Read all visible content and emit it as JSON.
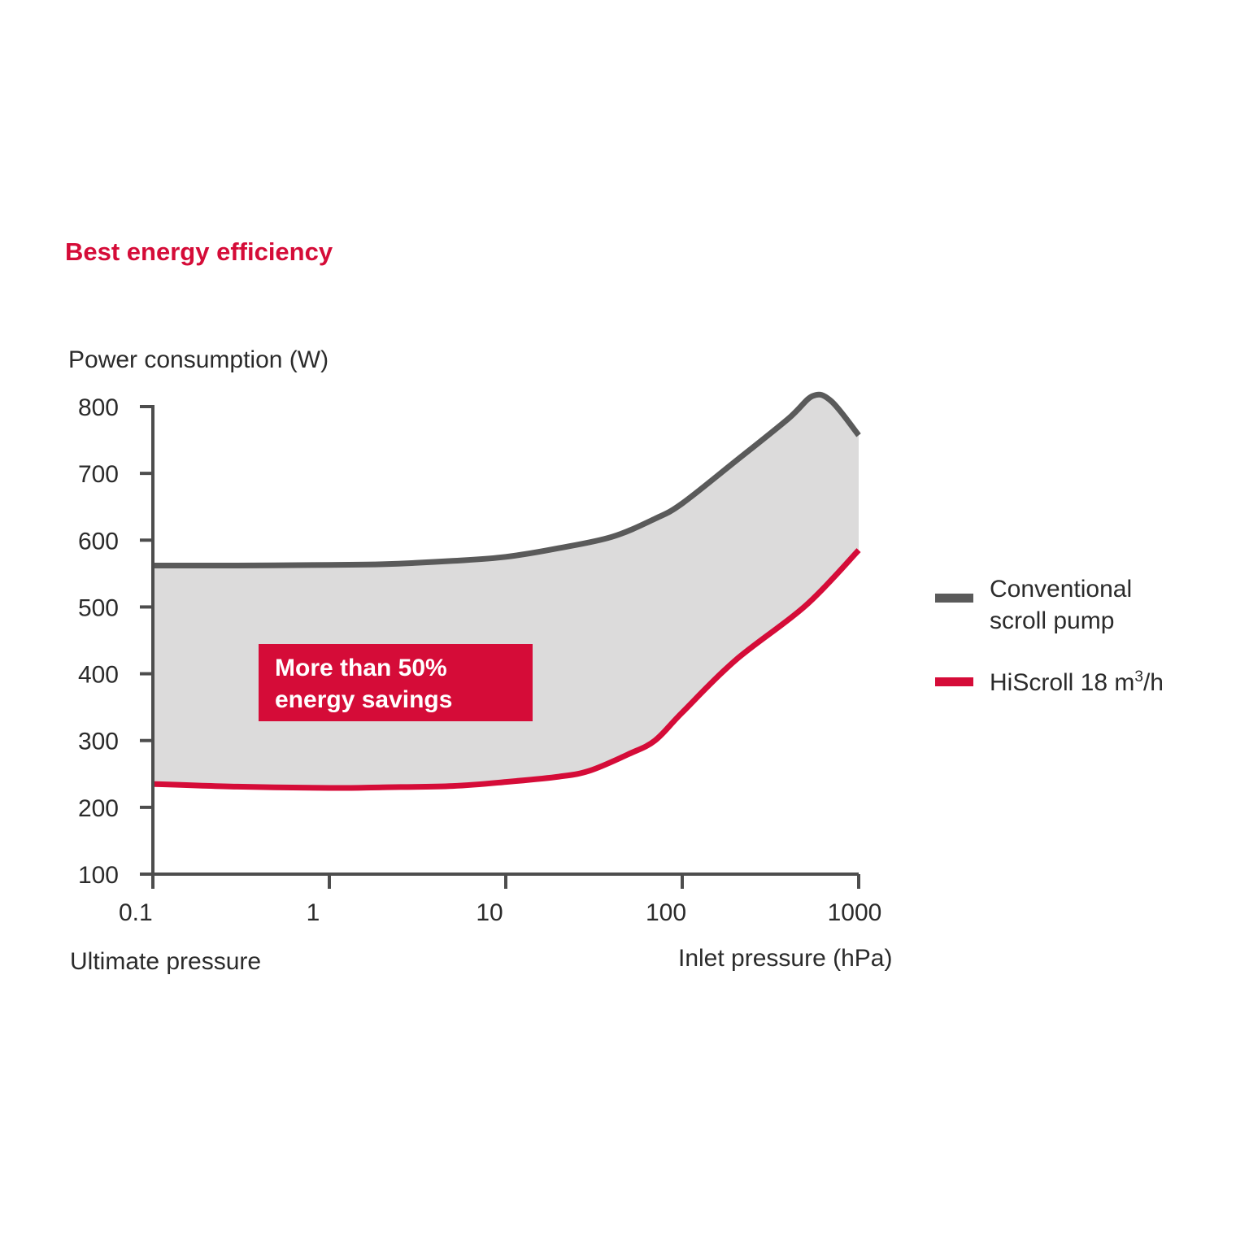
{
  "title": "Best energy efficiency",
  "colors": {
    "accent": "#d50c38",
    "conventional": "#5a5a5a",
    "fill": "#dcdbdb",
    "axis": "#4d4d4d"
  },
  "annotation": {
    "line1": "More than 50%",
    "line2": "energy savings"
  },
  "legend": {
    "conventional_line1": "Conventional",
    "conventional_line2": "scroll pump",
    "hiscroll_main": "HiScroll 18 m",
    "hiscroll_sup": "3",
    "hiscroll_tail": "/h"
  },
  "chart_data": {
    "type": "line",
    "title": "Best energy efficiency",
    "ylabel": "Power consumption (W)",
    "xlabel": "Inlet pressure (hPa)",
    "xlabel_left": "Ultimate pressure",
    "x_scale": "log",
    "xlim": [
      0.1,
      1000
    ],
    "ylim": [
      100,
      800
    ],
    "x_ticks": [
      0.1,
      1,
      10,
      100,
      1000
    ],
    "x_tick_labels": [
      "0.1",
      "1",
      "10",
      "100",
      "1000"
    ],
    "y_ticks": [
      800,
      700,
      600,
      500,
      400,
      300,
      200,
      100
    ],
    "y_tick_labels": [
      "800",
      "700",
      "600",
      "500",
      "400",
      "300",
      "200",
      "100"
    ],
    "grid": false,
    "legend_position": "right",
    "fill_between_series": true,
    "series": [
      {
        "name": "Conventional scroll pump",
        "color": "#5a5a5a",
        "x": [
          0.1,
          0.3,
          1,
          2,
          5,
          10,
          20,
          40,
          70,
          100,
          200,
          400,
          550,
          700,
          1000
        ],
        "y": [
          562,
          562,
          563,
          564,
          569,
          575,
          588,
          605,
          632,
          655,
          718,
          782,
          816,
          808,
          757
        ]
      },
      {
        "name": "HiScroll 18 m³/h",
        "color": "#d50c38",
        "x": [
          0.1,
          0.3,
          1,
          2,
          5,
          10,
          20,
          30,
          50,
          70,
          100,
          200,
          500,
          1000
        ],
        "y": [
          235,
          231,
          229,
          230,
          232,
          238,
          246,
          255,
          280,
          300,
          342,
          420,
          502,
          585
        ]
      }
    ]
  }
}
